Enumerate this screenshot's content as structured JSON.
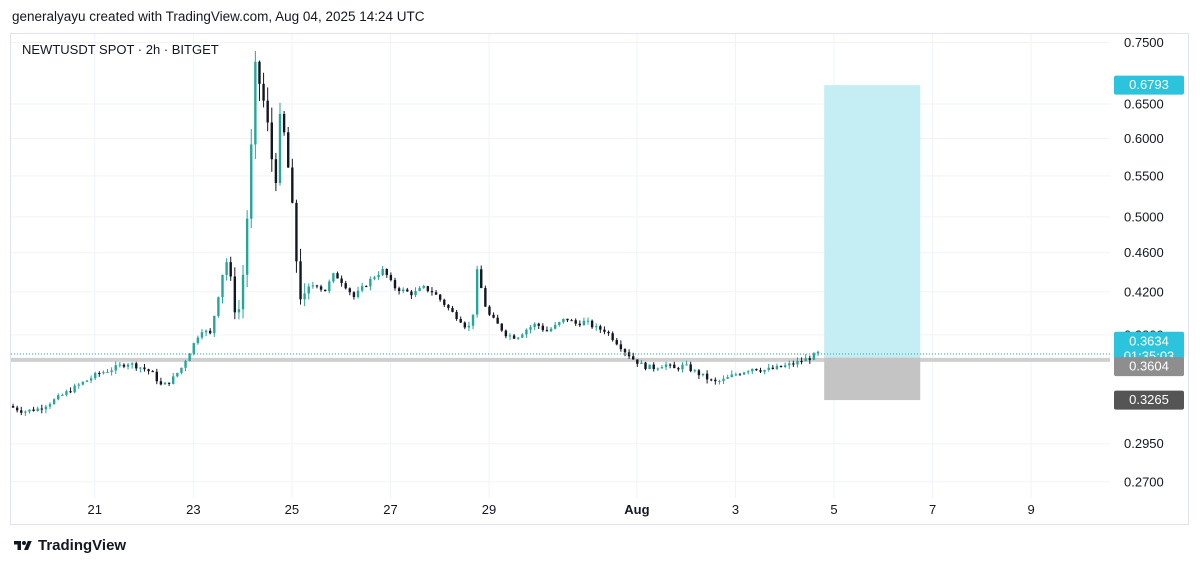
{
  "header": {
    "attribution": "generalyayu created with TradingView.com, Aug 04, 2025 14:24 UTC"
  },
  "footer": {
    "brand": "TradingView"
  },
  "colors": {
    "up": "#26a69a",
    "down": "#131722",
    "target_zone": "#c5eef4",
    "stop_zone": "#c4c4c4",
    "price_tag": "#2bc4dc",
    "grid": "#f0f3fa"
  },
  "chart_data": {
    "type": "candlestick",
    "title": "NEWTUSDT SPOT · 2h · BITGET",
    "y_scale": "log",
    "ylim": [
      0.26,
      0.765
    ],
    "y_ticks": [
      "0.7500",
      "0.6500",
      "0.6000",
      "0.5500",
      "0.5000",
      "0.4600",
      "0.4200",
      "0.3800",
      "0.2950",
      "0.2700"
    ],
    "y_tick_values": [
      0.75,
      0.65,
      0.6,
      0.55,
      0.5,
      0.46,
      0.42,
      0.38,
      0.295,
      0.27
    ],
    "x_ticks": [
      {
        "label": "21",
        "day": 21
      },
      {
        "label": "23",
        "day": 23
      },
      {
        "label": "25",
        "day": 25
      },
      {
        "label": "27",
        "day": 27
      },
      {
        "label": "29",
        "day": 29
      },
      {
        "label": "Aug",
        "day": 32
      },
      {
        "label": "3",
        "day": 34
      },
      {
        "label": "5",
        "day": 36
      },
      {
        "label": "7",
        "day": 38
      },
      {
        "label": "9",
        "day": 40
      }
    ],
    "x_range_days": [
      19.3,
      41.6
    ],
    "price_series": [
      [
        19.3,
        0.322
      ],
      [
        19.6,
        0.318
      ],
      [
        19.9,
        0.32
      ],
      [
        20.2,
        0.326
      ],
      [
        20.5,
        0.333
      ],
      [
        20.8,
        0.34
      ],
      [
        21.1,
        0.347
      ],
      [
        21.4,
        0.351
      ],
      [
        21.7,
        0.356
      ],
      [
        22.0,
        0.352
      ],
      [
        22.2,
        0.348
      ],
      [
        22.4,
        0.337
      ],
      [
        22.6,
        0.342
      ],
      [
        22.8,
        0.352
      ],
      [
        23.0,
        0.368
      ],
      [
        23.2,
        0.385
      ],
      [
        23.4,
        0.38
      ],
      [
        23.55,
        0.42
      ],
      [
        23.7,
        0.455
      ],
      [
        23.8,
        0.43
      ],
      [
        23.9,
        0.4
      ],
      [
        24.0,
        0.405
      ],
      [
        24.1,
        0.47
      ],
      [
        24.2,
        0.56
      ],
      [
        24.3,
        0.7
      ],
      [
        24.4,
        0.68
      ],
      [
        24.5,
        0.64
      ],
      [
        24.6,
        0.59
      ],
      [
        24.7,
        0.54
      ],
      [
        24.8,
        0.62
      ],
      [
        24.9,
        0.6
      ],
      [
        25.0,
        0.54
      ],
      [
        25.1,
        0.47
      ],
      [
        25.2,
        0.42
      ],
      [
        25.3,
        0.41
      ],
      [
        25.5,
        0.43
      ],
      [
        25.7,
        0.42
      ],
      [
        25.9,
        0.438
      ],
      [
        26.1,
        0.428
      ],
      [
        26.3,
        0.415
      ],
      [
        26.5,
        0.425
      ],
      [
        26.7,
        0.435
      ],
      [
        26.9,
        0.442
      ],
      [
        27.1,
        0.425
      ],
      [
        27.3,
        0.421
      ],
      [
        27.5,
        0.418
      ],
      [
        27.7,
        0.424
      ],
      [
        27.9,
        0.42
      ],
      [
        28.1,
        0.41
      ],
      [
        28.3,
        0.4
      ],
      [
        28.5,
        0.392
      ],
      [
        28.6,
        0.385
      ],
      [
        28.7,
        0.392
      ],
      [
        28.8,
        0.44
      ],
      [
        28.9,
        0.42
      ],
      [
        29.0,
        0.4
      ],
      [
        29.2,
        0.39
      ],
      [
        29.4,
        0.38
      ],
      [
        29.6,
        0.378
      ],
      [
        29.8,
        0.385
      ],
      [
        30.0,
        0.39
      ],
      [
        30.2,
        0.383
      ],
      [
        30.4,
        0.388
      ],
      [
        30.6,
        0.395
      ],
      [
        30.8,
        0.39
      ],
      [
        31.0,
        0.392
      ],
      [
        31.2,
        0.386
      ],
      [
        31.4,
        0.384
      ],
      [
        31.6,
        0.375
      ],
      [
        31.8,
        0.366
      ],
      [
        32.0,
        0.358
      ],
      [
        32.2,
        0.353
      ],
      [
        32.4,
        0.352
      ],
      [
        32.6,
        0.355
      ],
      [
        32.8,
        0.351
      ],
      [
        33.0,
        0.354
      ],
      [
        33.2,
        0.349
      ],
      [
        33.4,
        0.345
      ],
      [
        33.6,
        0.34
      ],
      [
        33.8,
        0.342
      ],
      [
        34.0,
        0.346
      ],
      [
        34.2,
        0.349
      ],
      [
        34.4,
        0.352
      ],
      [
        34.6,
        0.35
      ],
      [
        34.8,
        0.351
      ],
      [
        35.0,
        0.353
      ],
      [
        35.2,
        0.355
      ],
      [
        35.4,
        0.358
      ],
      [
        35.6,
        0.361
      ],
      [
        35.7,
        0.364
      ]
    ],
    "annotations": {
      "current_price": 0.3634,
      "last_price_label": "0.3634",
      "countdown_label": "01:35:03",
      "target_label": "0.6793",
      "target_value": 0.6793,
      "entry_value": 0.3604,
      "entry_label": "0.3604",
      "stop_value": 0.3265,
      "stop_label": "0.3265",
      "position_day_start": 35.8,
      "position_day_end": 37.75,
      "horizontal_level": 0.3585
    }
  }
}
